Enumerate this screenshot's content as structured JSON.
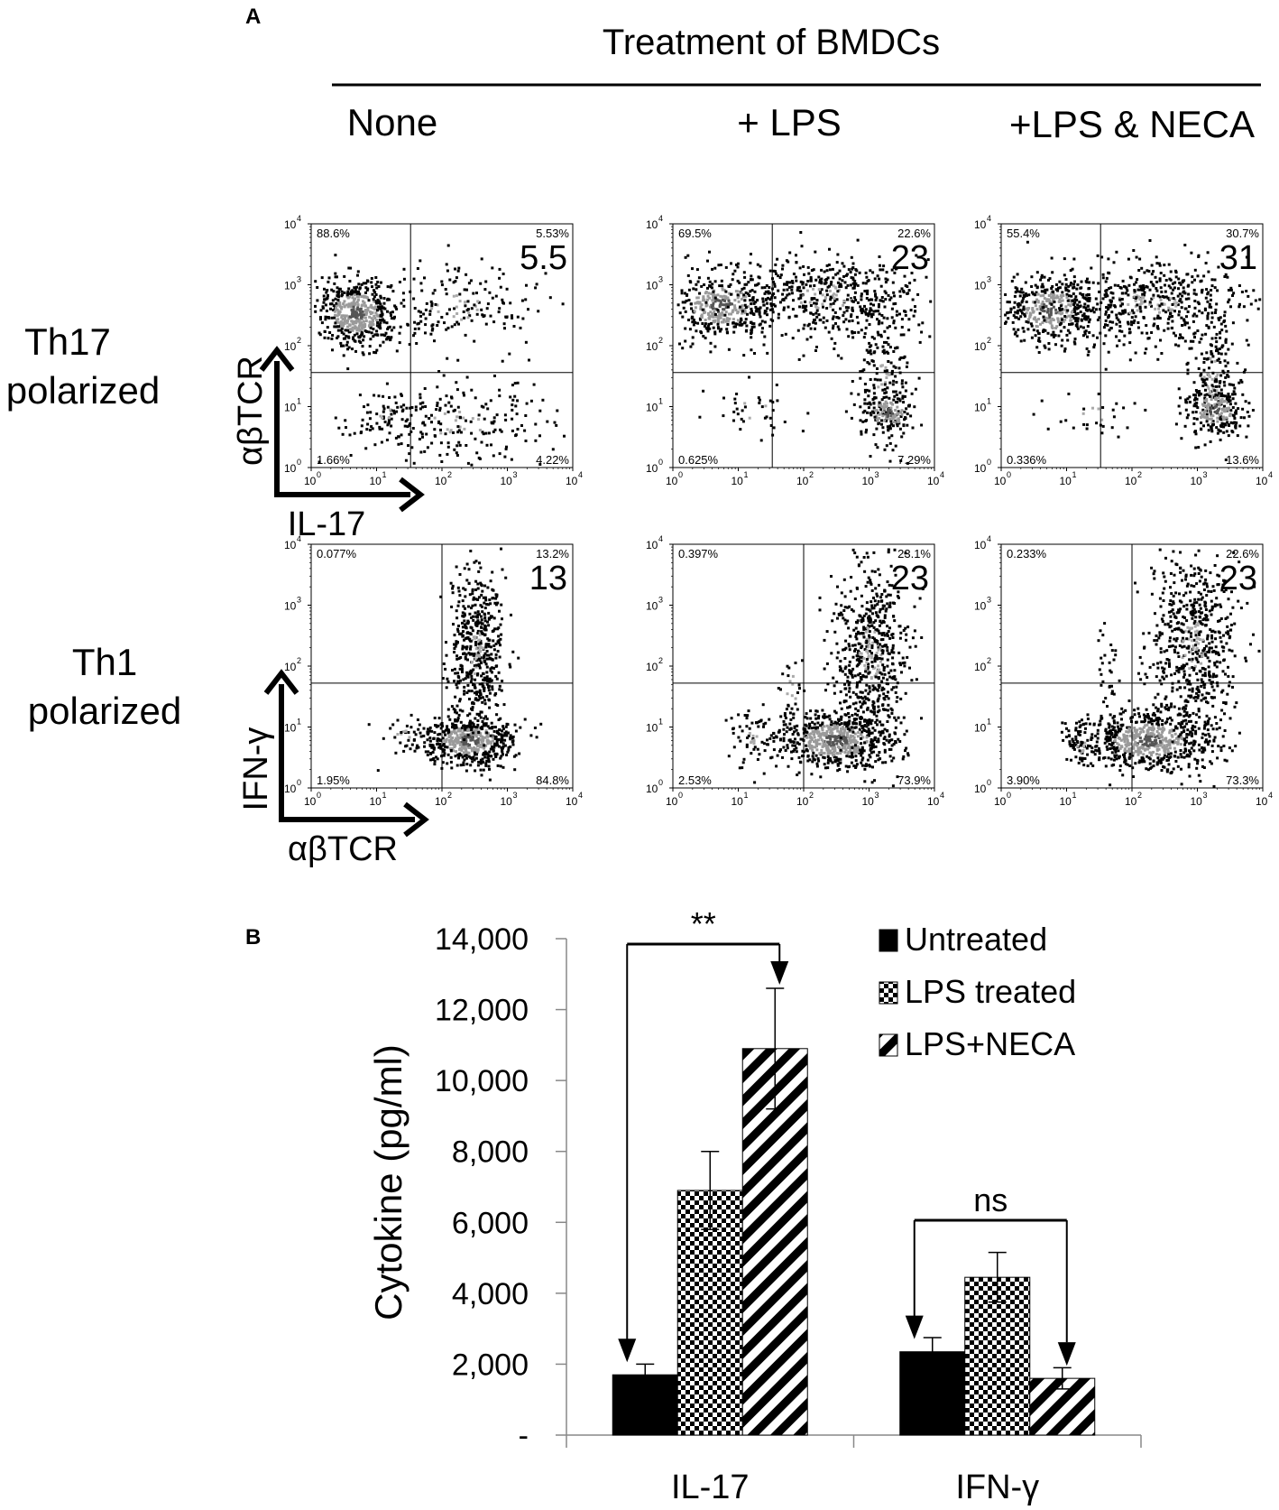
{
  "panel_a": {
    "panel_label": "A",
    "treatment_header": "Treatment of BMDCs",
    "columns": [
      "None",
      "+ LPS",
      "+LPS & NECA"
    ],
    "rows": [
      {
        "line1": "Th17",
        "line2": "polarized"
      },
      {
        "line1": "Th1",
        "line2": "polarized"
      }
    ],
    "axis_arrows": {
      "th17_y": "αβTCR",
      "th17_x": "IL-17",
      "th1_y": "IFN-γ",
      "th1_x": "αβTCR"
    },
    "tick_base": "10",
    "tick_exponents": [
      "0",
      "1",
      "2",
      "3",
      "4"
    ],
    "plots": [
      {
        "row": 0,
        "col": 0,
        "ul": "88.6%",
        "ur": "5.53%",
        "ll": "1.66%",
        "lr": "4.22%",
        "big": "5.5"
      },
      {
        "row": 0,
        "col": 1,
        "ul": "69.5%",
        "ur": "22.6%",
        "ll": "0.625%",
        "lr": "7.29%",
        "big": "23"
      },
      {
        "row": 0,
        "col": 2,
        "ul": "55.4%",
        "ur": "30.7%",
        "ll": "0.336%",
        "lr": "13.6%",
        "big": "31"
      },
      {
        "row": 1,
        "col": 0,
        "ul": "0.077%",
        "ur": "13.2%",
        "ll": "1.95%",
        "lr": "84.8%",
        "big": "13"
      },
      {
        "row": 1,
        "col": 1,
        "ul": "0.397%",
        "ur": "23.1%",
        "ll": "2.53%",
        "lr": "73.9%",
        "big": "23"
      },
      {
        "row": 1,
        "col": 2,
        "ul": "0.233%",
        "ur": "22.6%",
        "ll": "3.90%",
        "lr": "73.3%",
        "big": "23"
      }
    ]
  },
  "panel_b": {
    "panel_label": "B"
  },
  "chart_data": {
    "type": "bar",
    "categories": [
      "IL-17",
      "IFN-γ"
    ],
    "series": [
      {
        "name": "Untreated",
        "values": [
          1700,
          2350
        ],
        "errors": [
          300,
          400
        ],
        "pattern": "solid"
      },
      {
        "name": "LPS treated",
        "values": [
          6900,
          4450
        ],
        "errors": [
          1100,
          700
        ],
        "pattern": "checker"
      },
      {
        "name": "LPS+NECA",
        "values": [
          10900,
          1600
        ],
        "errors": [
          1700,
          300
        ],
        "pattern": "diagonal"
      }
    ],
    "ylabel": "Cytokine (pg/ml)",
    "ylim": [
      0,
      14000
    ],
    "yticks": [
      0,
      2000,
      4000,
      6000,
      8000,
      10000,
      12000,
      14000
    ],
    "ytick_labels": [
      "-",
      "2,000",
      "4,000",
      "6,000",
      "8,000",
      "10,000",
      "12,000",
      "14,000"
    ],
    "legend_position": "top-right",
    "annotations": [
      {
        "category": "IL-17",
        "text": "**"
      },
      {
        "category": "IFN-γ",
        "text": "ns"
      }
    ]
  }
}
